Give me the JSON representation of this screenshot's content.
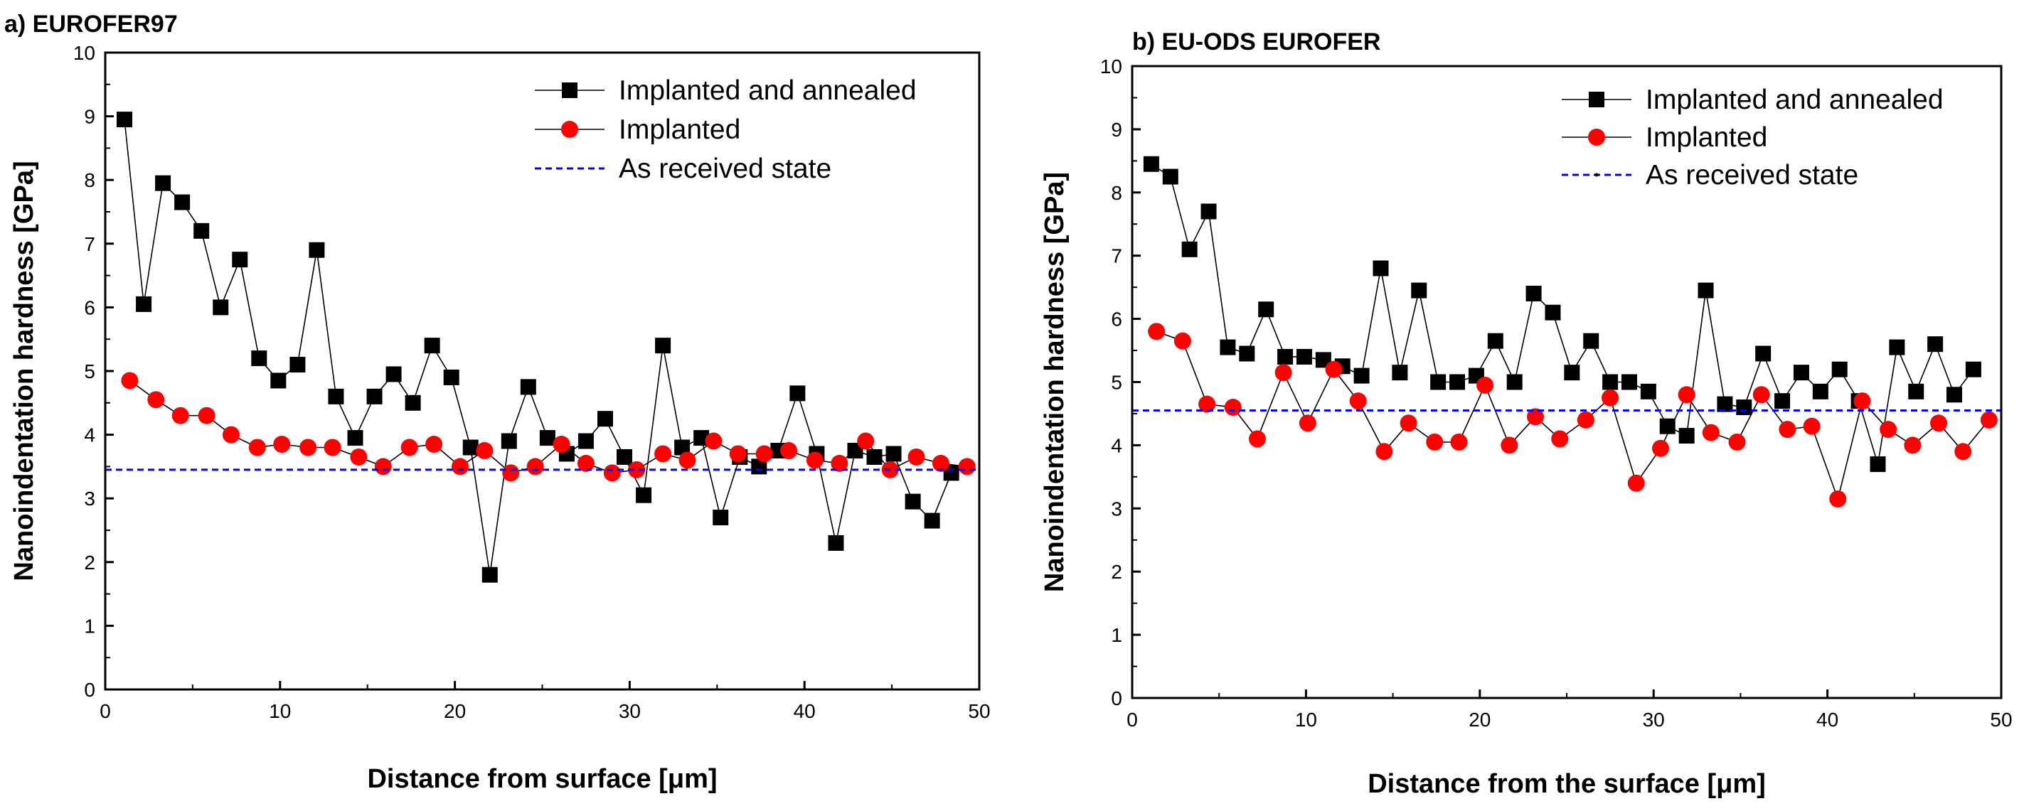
{
  "chart_data": [
    {
      "type": "line",
      "title": "a) EUROFER97",
      "xlabel": "Distance from surface [μm]",
      "ylabel": "Nanoindentation hardness [GPa]",
      "xlim": [
        0,
        50
      ],
      "ylim": [
        0,
        10
      ],
      "xticks": [
        0,
        10,
        20,
        30,
        40,
        50
      ],
      "yticks": [
        0,
        1,
        2,
        3,
        4,
        5,
        6,
        7,
        8,
        9,
        10
      ],
      "legend_position": "top-right",
      "series": [
        {
          "name": "Implanted and annealed",
          "marker": "square",
          "color": "#000000",
          "x": [
            1.1,
            2.2,
            3.3,
            4.4,
            5.5,
            6.6,
            7.7,
            8.8,
            9.9,
            11.0,
            12.1,
            13.2,
            14.3,
            15.4,
            16.5,
            17.6,
            18.7,
            19.8,
            20.9,
            22.0,
            23.1,
            24.2,
            25.3,
            26.4,
            27.5,
            28.6,
            29.7,
            30.8,
            31.9,
            33.0,
            34.1,
            35.2,
            36.3,
            37.4,
            38.5,
            39.6,
            40.7,
            41.8,
            42.9,
            44.0,
            45.1,
            46.2,
            47.3,
            48.4
          ],
          "y": [
            8.95,
            6.05,
            7.95,
            7.65,
            7.2,
            6.0,
            6.75,
            5.2,
            4.85,
            5.1,
            6.9,
            4.6,
            3.95,
            4.6,
            4.95,
            4.5,
            5.4,
            4.9,
            3.8,
            1.8,
            3.9,
            4.75,
            3.95,
            3.7,
            3.9,
            4.25,
            3.65,
            3.05,
            5.4,
            3.8,
            3.95,
            2.7,
            3.65,
            3.5,
            3.75,
            4.65,
            3.7,
            2.3,
            3.75,
            3.65,
            3.7,
            2.95,
            2.65,
            3.4
          ]
        },
        {
          "name": "Implanted",
          "marker": "circle",
          "color": "#ff0000",
          "x": [
            1.4,
            2.9,
            4.3,
            5.8,
            7.2,
            8.7,
            10.1,
            11.6,
            13.0,
            14.5,
            15.9,
            17.4,
            18.8,
            20.3,
            21.7,
            23.2,
            24.6,
            26.1,
            27.5,
            29.0,
            30.4,
            31.9,
            33.3,
            34.8,
            36.2,
            37.7,
            39.1,
            40.6,
            42.0,
            43.5,
            44.9,
            46.4,
            47.8,
            49.3
          ],
          "y": [
            4.85,
            4.55,
            4.3,
            4.3,
            4.0,
            3.8,
            3.85,
            3.8,
            3.8,
            3.65,
            3.5,
            3.8,
            3.85,
            3.5,
            3.75,
            3.4,
            3.5,
            3.85,
            3.55,
            3.4,
            3.45,
            3.7,
            3.6,
            3.9,
            3.7,
            3.7,
            3.75,
            3.6,
            3.55,
            3.9,
            3.45,
            3.65,
            3.55,
            3.5
          ]
        },
        {
          "name": "As received state",
          "style": "dashed",
          "color": "#0000ff",
          "x": [
            0,
            50
          ],
          "y": [
            3.45,
            3.45
          ]
        }
      ]
    },
    {
      "type": "line",
      "title": "b) EU-ODS EUROFER",
      "xlabel": "Distance from the surface [μm]",
      "ylabel": "Nanoindentation hardness [GPa]",
      "xlim": [
        0,
        50
      ],
      "ylim": [
        0,
        10
      ],
      "xticks": [
        0,
        10,
        20,
        30,
        40,
        50
      ],
      "yticks": [
        0,
        1,
        2,
        3,
        4,
        5,
        6,
        7,
        8,
        9,
        10
      ],
      "legend_position": "top-right",
      "series": [
        {
          "name": "Implanted and annealed",
          "marker": "square",
          "color": "#000000",
          "x": [
            1.1,
            2.2,
            3.3,
            4.4,
            5.5,
            6.6,
            7.7,
            8.8,
            9.9,
            11.0,
            12.1,
            13.2,
            14.3,
            15.4,
            16.5,
            17.6,
            18.7,
            19.8,
            20.9,
            22.0,
            23.1,
            24.2,
            25.3,
            26.4,
            27.5,
            28.6,
            29.7,
            30.8,
            31.9,
            33.0,
            34.1,
            35.2,
            36.3,
            37.4,
            38.5,
            39.6,
            40.7,
            41.8,
            42.9,
            44.0,
            45.1,
            46.2,
            47.3,
            48.4
          ],
          "y": [
            8.45,
            8.25,
            7.1,
            7.7,
            5.55,
            5.45,
            6.15,
            5.4,
            5.4,
            5.35,
            5.25,
            5.1,
            6.8,
            5.15,
            6.45,
            5.0,
            5.0,
            5.1,
            5.65,
            5.0,
            6.4,
            6.1,
            5.15,
            5.65,
            5.0,
            5.0,
            4.85,
            4.3,
            4.15,
            6.45,
            4.65,
            4.6,
            5.45,
            4.7,
            5.15,
            4.85,
            5.2,
            4.7,
            3.7,
            5.55,
            4.85,
            5.6,
            4.8,
            5.2
          ]
        },
        {
          "name": "Implanted",
          "marker": "circle",
          "color": "#ff0000",
          "x": [
            1.4,
            2.9,
            4.3,
            5.8,
            7.2,
            8.7,
            10.1,
            11.6,
            13.0,
            14.5,
            15.9,
            17.4,
            18.8,
            20.3,
            21.7,
            23.2,
            24.6,
            26.1,
            27.5,
            29.0,
            30.4,
            31.9,
            33.3,
            34.8,
            36.2,
            37.7,
            39.1,
            40.6,
            42.0,
            43.5,
            44.9,
            46.4,
            47.8,
            49.3
          ],
          "y": [
            5.8,
            5.65,
            4.65,
            4.6,
            4.1,
            5.15,
            4.35,
            5.2,
            4.7,
            3.9,
            4.35,
            4.05,
            4.05,
            4.95,
            4.0,
            4.45,
            4.1,
            4.4,
            4.75,
            3.4,
            3.95,
            4.8,
            4.2,
            4.05,
            4.8,
            4.25,
            4.3,
            3.15,
            4.7,
            4.25,
            4.0,
            4.35,
            3.9,
            4.4
          ]
        },
        {
          "name": "As received state",
          "style": "dashed",
          "color": "#0000ff",
          "x": [
            0,
            50
          ],
          "y": [
            4.55,
            4.55
          ]
        }
      ]
    }
  ]
}
